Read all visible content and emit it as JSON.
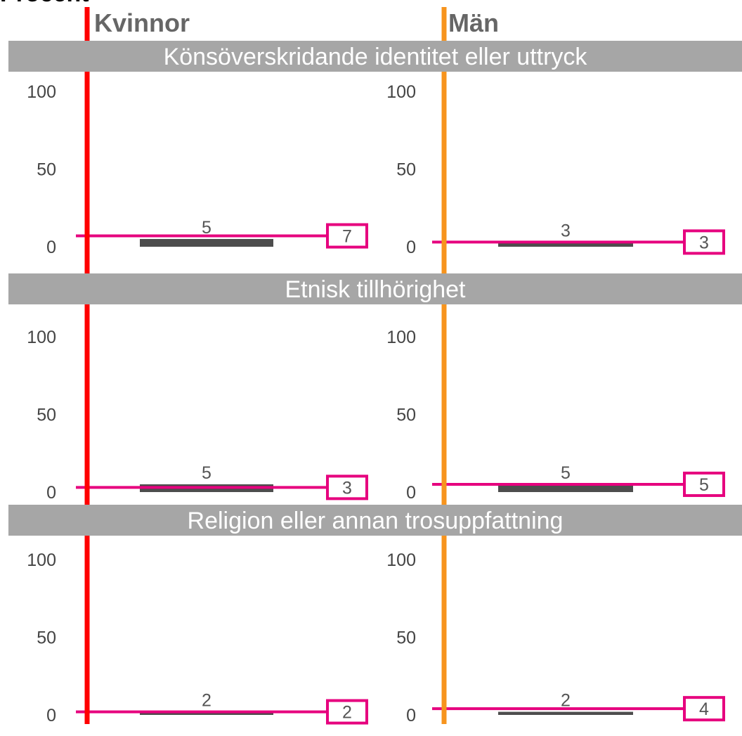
{
  "caption": "Procent",
  "columns": [
    {
      "label": "Kvinnor",
      "color": "#ff0000"
    },
    {
      "label": "Män",
      "color": "#f7941d"
    }
  ],
  "colors": {
    "band": "#a6a6a6",
    "bar": "#4d4d4d",
    "reference": "#e6007e"
  },
  "chart_data": [
    {
      "type": "bar",
      "title": "Könsöverskridande identitet eller uttryck",
      "categories": [
        "Kvinnor",
        "Män"
      ],
      "ylim": [
        0,
        100
      ],
      "yticks": [
        "100",
        "50",
        "0"
      ],
      "series": [
        {
          "values": [
            5,
            3
          ]
        },
        {
          "values": [
            7,
            3
          ]
        }
      ]
    },
    {
      "type": "bar",
      "title": "Etnisk tillhörighet",
      "categories": [
        "Kvinnor",
        "Män"
      ],
      "ylim": [
        0,
        100
      ],
      "yticks": [
        "100",
        "50",
        "0"
      ],
      "series": [
        {
          "values": [
            5,
            5
          ]
        },
        {
          "values": [
            3,
            5
          ]
        }
      ]
    },
    {
      "type": "bar",
      "title": "Religion eller annan trosuppfattning",
      "categories": [
        "Kvinnor",
        "Män"
      ],
      "ylim": [
        0,
        100
      ],
      "yticks": [
        "100",
        "50",
        "0"
      ],
      "series": [
        {
          "values": [
            2,
            2
          ]
        },
        {
          "values": [
            2,
            4
          ]
        }
      ]
    }
  ]
}
